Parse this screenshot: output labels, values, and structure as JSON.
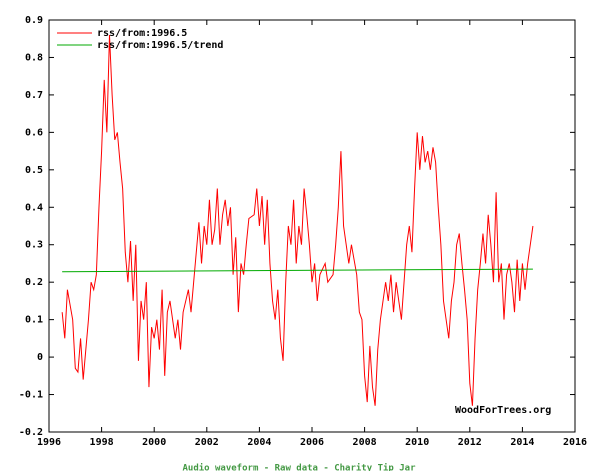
{
  "chart_data": {
    "type": "line",
    "series": [
      {
        "name": "rss/from:1996.5",
        "color": "#ff0000",
        "x": [
          1996.5,
          1996.6,
          1996.7,
          1996.9,
          1997.0,
          1997.1,
          1997.2,
          1997.3,
          1997.5,
          1997.6,
          1997.7,
          1997.8,
          1997.9,
          1998.0,
          1998.1,
          1998.2,
          1998.3,
          1998.4,
          1998.5,
          1998.6,
          1998.7,
          1998.8,
          1998.9,
          1999.0,
          1999.1,
          1999.2,
          1999.3,
          1999.4,
          1999.5,
          1999.6,
          1999.7,
          1999.8,
          1999.9,
          2000.0,
          2000.1,
          2000.2,
          2000.3,
          2000.4,
          2000.5,
          2000.6,
          2000.8,
          2000.9,
          2001.0,
          2001.1,
          2001.3,
          2001.4,
          2001.5,
          2001.7,
          2001.8,
          2001.9,
          2002.0,
          2002.1,
          2002.2,
          2002.3,
          2002.4,
          2002.5,
          2002.6,
          2002.7,
          2002.8,
          2002.9,
          2003.0,
          2003.1,
          2003.2,
          2003.3,
          2003.4,
          2003.5,
          2003.6,
          2003.8,
          2003.9,
          2004.0,
          2004.1,
          2004.2,
          2004.3,
          2004.4,
          2004.5,
          2004.6,
          2004.7,
          2004.8,
          2004.9,
          2005.0,
          2005.1,
          2005.2,
          2005.3,
          2005.4,
          2005.5,
          2005.6,
          2005.7,
          2005.8,
          2005.9,
          2006.0,
          2006.1,
          2006.2,
          2006.3,
          2006.5,
          2006.6,
          2006.8,
          2006.9,
          2007.0,
          2007.1,
          2007.2,
          2007.3,
          2007.4,
          2007.5,
          2007.7,
          2007.8,
          2007.9,
          2008.0,
          2008.1,
          2008.2,
          2008.3,
          2008.4,
          2008.5,
          2008.6,
          2008.7,
          2008.8,
          2008.9,
          2009.0,
          2009.1,
          2009.2,
          2009.3,
          2009.4,
          2009.5,
          2009.6,
          2009.7,
          2009.8,
          2009.9,
          2010.0,
          2010.1,
          2010.2,
          2010.3,
          2010.4,
          2010.5,
          2010.6,
          2010.7,
          2010.8,
          2010.9,
          2011.0,
          2011.1,
          2011.2,
          2011.3,
          2011.4,
          2011.5,
          2011.6,
          2011.7,
          2011.8,
          2011.9,
          2012.0,
          2012.1,
          2012.2,
          2012.3,
          2012.4,
          2012.5,
          2012.6,
          2012.7,
          2012.8,
          2012.9,
          2013.0,
          2013.1,
          2013.2,
          2013.3,
          2013.4,
          2013.5,
          2013.6,
          2013.7,
          2013.8,
          2013.9,
          2014.0,
          2014.1,
          2014.2,
          2014.3,
          2014.4
        ],
        "values": [
          0.12,
          0.05,
          0.18,
          0.1,
          -0.03,
          -0.04,
          0.05,
          -0.06,
          0.1,
          0.2,
          0.18,
          0.22,
          0.4,
          0.55,
          0.74,
          0.6,
          0.86,
          0.7,
          0.58,
          0.6,
          0.52,
          0.45,
          0.28,
          0.2,
          0.31,
          0.15,
          0.3,
          -0.01,
          0.15,
          0.1,
          0.2,
          -0.08,
          0.08,
          0.05,
          0.1,
          0.02,
          0.18,
          -0.05,
          0.12,
          0.15,
          0.05,
          0.1,
          0.02,
          0.12,
          0.18,
          0.12,
          0.2,
          0.36,
          0.25,
          0.35,
          0.3,
          0.42,
          0.3,
          0.34,
          0.45,
          0.3,
          0.38,
          0.42,
          0.35,
          0.4,
          0.22,
          0.32,
          0.12,
          0.25,
          0.22,
          0.3,
          0.37,
          0.38,
          0.45,
          0.35,
          0.43,
          0.3,
          0.42,
          0.25,
          0.15,
          0.1,
          0.18,
          0.05,
          -0.01,
          0.2,
          0.35,
          0.3,
          0.42,
          0.25,
          0.35,
          0.3,
          0.45,
          0.38,
          0.3,
          0.2,
          0.25,
          0.15,
          0.22,
          0.25,
          0.2,
          0.22,
          0.3,
          0.4,
          0.55,
          0.35,
          0.3,
          0.25,
          0.3,
          0.22,
          0.12,
          0.1,
          -0.05,
          -0.12,
          0.03,
          -0.08,
          -0.13,
          0.02,
          0.1,
          0.15,
          0.2,
          0.15,
          0.22,
          0.12,
          0.2,
          0.15,
          0.1,
          0.2,
          0.3,
          0.35,
          0.28,
          0.45,
          0.6,
          0.5,
          0.59,
          0.52,
          0.55,
          0.5,
          0.56,
          0.52,
          0.4,
          0.3,
          0.15,
          0.1,
          0.05,
          0.15,
          0.2,
          0.3,
          0.33,
          0.25,
          0.18,
          0.1,
          -0.07,
          -0.13,
          0.05,
          0.18,
          0.25,
          0.33,
          0.25,
          0.38,
          0.3,
          0.2,
          0.44,
          0.2,
          0.25,
          0.1,
          0.22,
          0.25,
          0.2,
          0.12,
          0.26,
          0.15,
          0.25,
          0.18,
          0.25,
          0.3,
          0.35
        ]
      },
      {
        "name": "rss/from:1996.5/trend",
        "color": "#00aa00",
        "x": [
          1996.5,
          2014.4
        ],
        "values": [
          0.228,
          0.235
        ]
      }
    ],
    "xlim": [
      1996,
      2016
    ],
    "ylim": [
      -0.2,
      0.9
    ],
    "xticks": [
      1996,
      1998,
      2000,
      2002,
      2004,
      2006,
      2008,
      2010,
      2012,
      2014,
      2016
    ],
    "yticks": [
      -0.2,
      -0.1,
      0,
      0.1,
      0.2,
      0.3,
      0.4,
      0.5,
      0.6,
      0.7,
      0.8,
      0.9
    ],
    "annotations": [
      "WoodForTrees.org"
    ]
  },
  "footer": "Audio waveform - Raw data - Charity Tip Jar"
}
